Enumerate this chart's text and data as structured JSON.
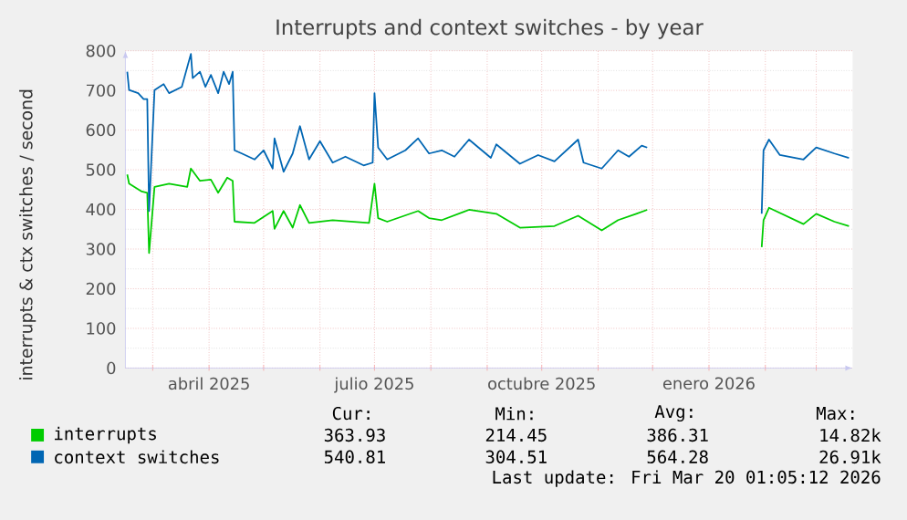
{
  "chart_data": {
    "type": "line",
    "title": "Interrupts and context switches - by year",
    "ylabel": "interrupts & ctx switches / second",
    "xlim": [
      "2025-02-14",
      "2026-03-21"
    ],
    "ylim": [
      0,
      800
    ],
    "yticks": [
      0,
      100,
      200,
      300,
      400,
      500,
      600,
      700,
      800
    ],
    "xticks": [
      {
        "value": "2025-03-01",
        "label": null
      },
      {
        "value": "2025-04-01",
        "label": "abril 2025"
      },
      {
        "value": "2025-05-01",
        "label": null
      },
      {
        "value": "2025-06-01",
        "label": null
      },
      {
        "value": "2025-07-01",
        "label": "julio 2025"
      },
      {
        "value": "2025-08-01",
        "label": null
      },
      {
        "value": "2025-09-01",
        "label": null
      },
      {
        "value": "2025-10-01",
        "label": "octubre 2025"
      },
      {
        "value": "2025-11-01",
        "label": null
      },
      {
        "value": "2025-12-01",
        "label": null
      },
      {
        "value": "2026-01-01",
        "label": "enero 2026"
      },
      {
        "value": "2026-02-01",
        "label": null
      },
      {
        "value": "2026-03-01",
        "label": null
      }
    ],
    "grid": true,
    "legend": "bottom",
    "marker": "none",
    "line_style": "solid",
    "series": [
      {
        "name": "interrupts",
        "color": "#00cc00",
        "x": [
          "2025-02-15",
          "2025-02-16",
          "2025-02-23",
          "2025-02-26",
          "2025-02-27",
          "2025-03-02",
          "2025-03-10",
          "2025-03-20",
          "2025-03-22",
          "2025-03-27",
          "2025-04-02",
          "2025-04-06",
          "2025-04-11",
          "2025-04-14",
          "2025-04-15",
          "2025-04-26",
          "2025-05-06",
          "2025-05-07",
          "2025-05-12",
          "2025-05-17",
          "2025-05-21",
          "2025-05-26",
          "2025-06-08",
          "2025-06-28",
          "2025-07-01",
          "2025-07-03",
          "2025-07-08",
          "2025-07-25",
          "2025-07-31",
          "2025-08-07",
          "2025-08-22",
          "2025-09-06",
          "2025-09-19",
          "2025-10-08",
          "2025-10-21",
          "2025-11-03",
          "2025-11-12",
          "2025-11-22",
          "2025-11-28",
          "2025-12-31",
          "2026-01-30",
          "2026-01-31",
          "2026-02-03",
          "2026-02-22",
          "2026-03-01",
          "2026-03-11",
          "2026-03-19"
        ],
        "values": [
          488,
          465,
          445,
          442,
          290,
          457,
          465,
          457,
          503,
          472,
          475,
          442,
          480,
          472,
          369,
          366,
          396,
          351,
          396,
          354,
          411,
          366,
          373,
          366,
          465,
          378,
          369,
          396,
          378,
          373,
          399,
          389,
          354,
          358,
          384,
          347,
          373,
          389,
          399,
          null,
          305,
          373,
          404,
          363,
          389,
          369,
          358
        ]
      },
      {
        "name": "context switches",
        "color": "#0066b3",
        "x": [
          "2025-02-15",
          "2025-02-16",
          "2025-02-21",
          "2025-02-24",
          "2025-02-26",
          "2025-02-27",
          "2025-03-02",
          "2025-03-07",
          "2025-03-10",
          "2025-03-17",
          "2025-03-22",
          "2025-03-23",
          "2025-03-27",
          "2025-03-30",
          "2025-04-02",
          "2025-04-06",
          "2025-04-09",
          "2025-04-12",
          "2025-04-14",
          "2025-04-15",
          "2025-04-19",
          "2025-04-26",
          "2025-05-01",
          "2025-05-06",
          "2025-05-07",
          "2025-05-12",
          "2025-05-17",
          "2025-05-21",
          "2025-05-26",
          "2025-06-01",
          "2025-06-08",
          "2025-06-15",
          "2025-06-25",
          "2025-06-30",
          "2025-07-01",
          "2025-07-03",
          "2025-07-08",
          "2025-07-18",
          "2025-07-25",
          "2025-07-31",
          "2025-08-07",
          "2025-08-14",
          "2025-08-22",
          "2025-09-03",
          "2025-09-06",
          "2025-09-19",
          "2025-09-29",
          "2025-10-08",
          "2025-10-21",
          "2025-10-24",
          "2025-11-03",
          "2025-11-12",
          "2025-11-18",
          "2025-11-25",
          "2025-11-28",
          "2025-12-31",
          "2026-01-30",
          "2026-01-31",
          "2026-02-03",
          "2026-02-09",
          "2026-02-22",
          "2026-03-01",
          "2026-03-11",
          "2026-03-19"
        ],
        "values": [
          747,
          701,
          693,
          678,
          678,
          396,
          701,
          716,
          693,
          709,
          792,
          731,
          747,
          709,
          739,
          693,
          747,
          716,
          747,
          549,
          541,
          526,
          549,
          503,
          579,
          495,
          541,
          610,
          526,
          572,
          518,
          533,
          511,
          518,
          693,
          556,
          526,
          549,
          579,
          541,
          549,
          533,
          576,
          530,
          564,
          515,
          537,
          521,
          576,
          518,
          503,
          549,
          533,
          561,
          556,
          null,
          389,
          549,
          576,
          537,
          526,
          556,
          541,
          530
        ]
      }
    ],
    "annotations": [
      "Cur:",
      "Min:",
      "Avg:",
      "Max:",
      "363.93",
      "214.45",
      "386.31",
      "14.82k",
      "540.81",
      "304.51",
      "564.28",
      "26.91k",
      "Last update: Fri Mar 20 01:05:12 2026"
    ]
  }
}
